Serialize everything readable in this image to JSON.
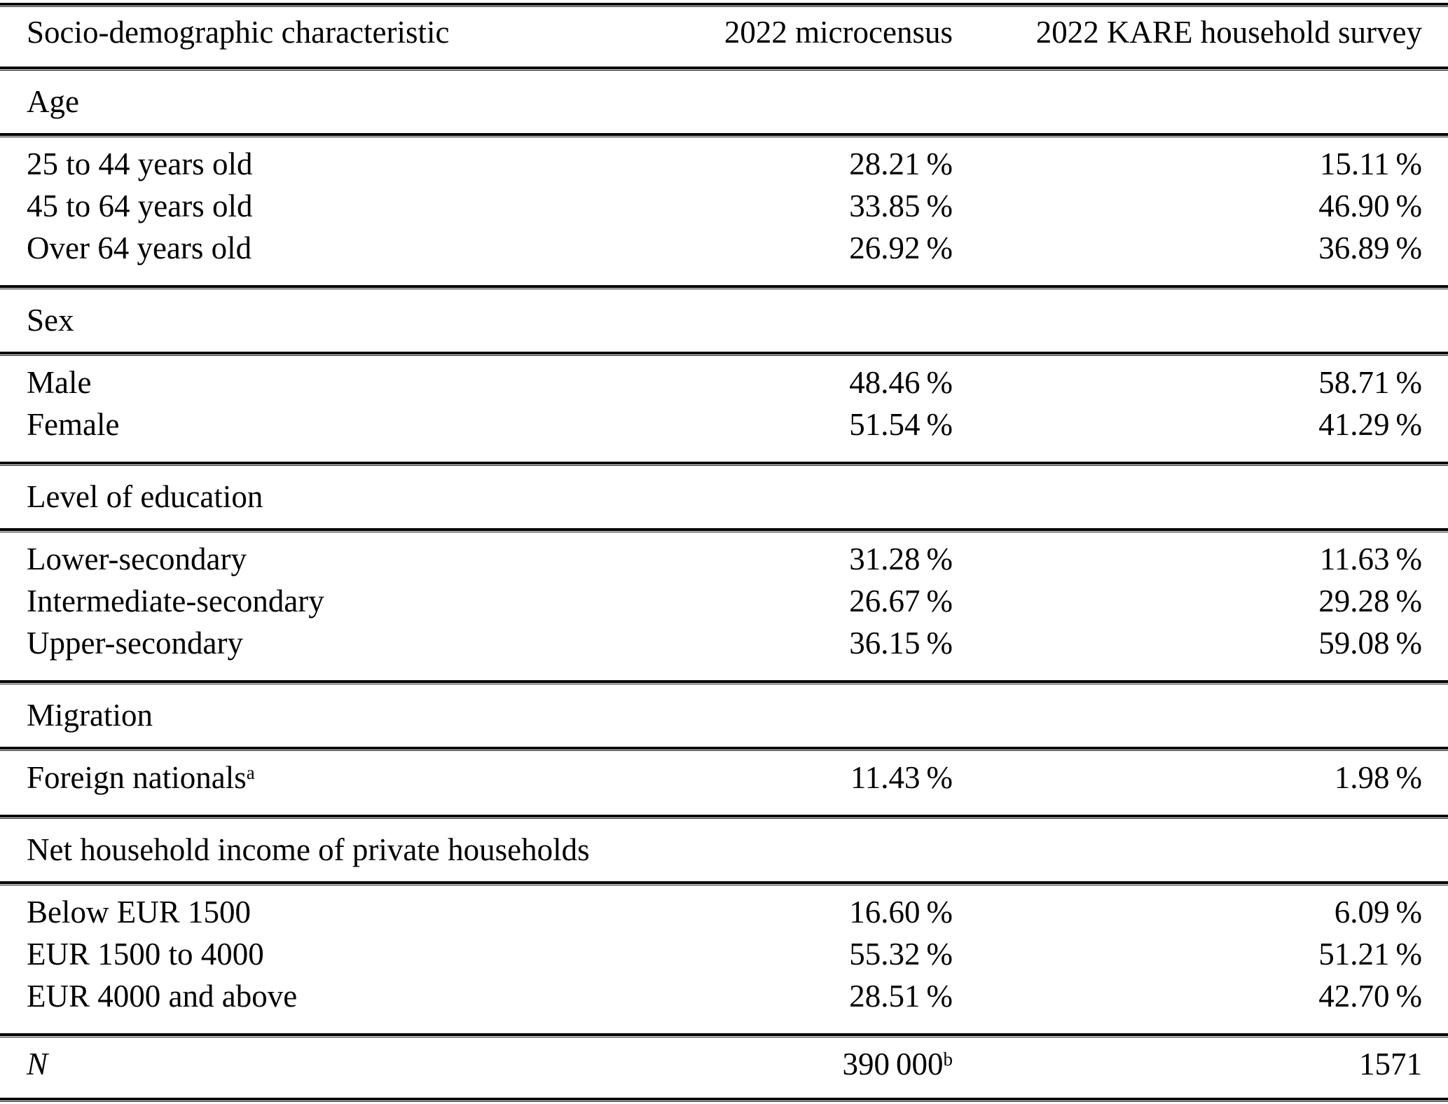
{
  "table": {
    "header": {
      "col1": "Socio-demographic characteristic",
      "col2": "2022 microcensus",
      "col3": "2022 KARE household survey"
    },
    "sections": [
      {
        "title": "Age",
        "rows": [
          {
            "label": "25 to 44 years old",
            "microcensus": "28.21 %",
            "kare": "15.11 %"
          },
          {
            "label": "45 to 64 years old",
            "microcensus": "33.85 %",
            "kare": "46.90 %"
          },
          {
            "label": "Over 64 years old",
            "microcensus": "26.92 %",
            "kare": "36.89 %"
          }
        ]
      },
      {
        "title": "Sex",
        "rows": [
          {
            "label": "Male",
            "microcensus": "48.46 %",
            "kare": "58.71 %"
          },
          {
            "label": "Female",
            "microcensus": "51.54 %",
            "kare": "41.29 %"
          }
        ]
      },
      {
        "title": "Level of education",
        "rows": [
          {
            "label": "Lower-secondary",
            "microcensus": "31.28 %",
            "kare": "11.63 %"
          },
          {
            "label": "Intermediate-secondary",
            "microcensus": "26.67 %",
            "kare": "29.28 %"
          },
          {
            "label": "Upper-secondary",
            "microcensus": "36.15 %",
            "kare": "59.08 %"
          }
        ]
      },
      {
        "title": "Migration",
        "rows": [
          {
            "label": "Foreign nationals",
            "label_sup": "a",
            "microcensus": "11.43 %",
            "kare": "1.98 %"
          }
        ]
      },
      {
        "title": "Net household income of private households",
        "rows": [
          {
            "label": "Below EUR 1500",
            "microcensus": "16.60 %",
            "kare": "6.09 %"
          },
          {
            "label": "EUR 1500 to 4000",
            "microcensus": "55.32 %",
            "kare": "51.21 %"
          },
          {
            "label": "EUR 4000 and above",
            "microcensus": "28.51 %",
            "kare": "42.70 %"
          }
        ]
      }
    ],
    "footer": {
      "label": "N",
      "microcensus": "390 000",
      "microcensus_sup": "b",
      "kare": "1571"
    }
  }
}
